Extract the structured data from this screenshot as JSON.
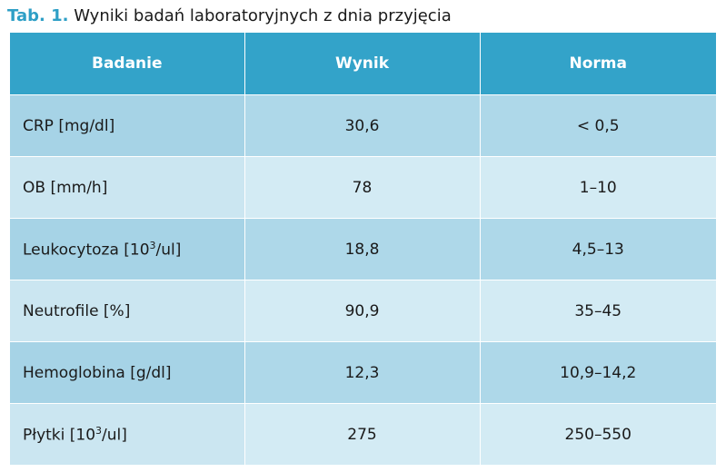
{
  "caption": {
    "label": "Tab. 1.",
    "text": "Wyniki badań laboratoryjnych z dnia przyjęcia"
  },
  "table": {
    "headers": [
      "Badanie",
      "Wynik",
      "Norma"
    ],
    "rows": [
      {
        "badanie": "CRP [mg/dl]",
        "wynik": "30,6",
        "norma": "< 0,5"
      },
      {
        "badanie": "OB [mm/h]",
        "wynik": "78",
        "norma": "1–10"
      },
      {
        "badanie_pre": "Leukocytoza [10",
        "badanie_sup": "3",
        "badanie_post": "/ul]",
        "wynik": "18,8",
        "norma": "4,5–13"
      },
      {
        "badanie": "Neutrofile [%]",
        "wynik": "90,9",
        "norma": "35–45"
      },
      {
        "badanie": "Hemoglobina [g/dl]",
        "wynik": "12,3",
        "norma": "10,9–14,2"
      },
      {
        "badanie_pre": "Płytki [10",
        "badanie_sup": "3",
        "badanie_post": "/ul]",
        "wynik": "275",
        "norma": "250–550"
      }
    ]
  },
  "colors": {
    "header_bg": "#33a3c9",
    "row_dark": "#aed8e9",
    "row_light": "#d3ebf4",
    "caption_label": "#2e9fc6"
  }
}
